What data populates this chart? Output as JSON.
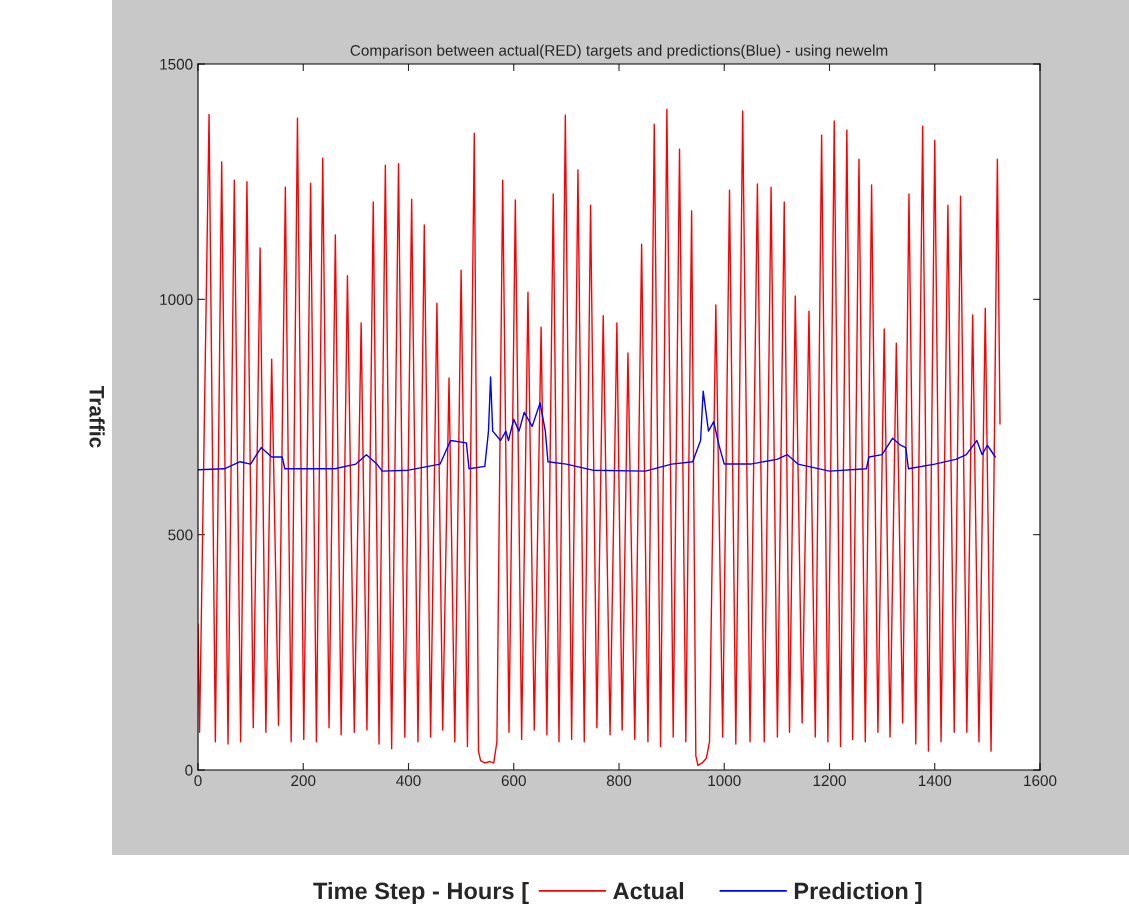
{
  "chart_data": {
    "type": "line",
    "title": "Comparison between actual(RED) targets and predictions(Blue) - using newelm",
    "xlabel": "Time Step - Hours [",
    "ylabel": "Traffic",
    "annotations": [
      "]"
    ],
    "xlim": [
      0,
      1600
    ],
    "xticks": [
      0,
      200,
      400,
      600,
      800,
      1000,
      1200,
      1400,
      1600
    ],
    "ylim": [
      0,
      1500
    ],
    "yticks": [
      0,
      500,
      1000,
      1500
    ],
    "grid": false,
    "legend": "bottom",
    "series": [
      {
        "name": "Actual",
        "color": "#ff0000",
        "x": [
          0,
          3,
          21,
          33,
          45,
          57,
          69,
          81,
          93,
          105,
          118,
          129,
          140,
          153,
          166,
          177,
          189,
          201,
          214,
          225,
          237,
          249,
          261,
          272,
          284,
          297,
          310,
          321,
          333,
          344,
          356,
          368,
          381,
          393,
          406,
          418,
          430,
          442,
          454,
          465,
          477,
          488,
          500,
          512,
          525,
          533,
          537,
          545,
          555,
          562,
          568,
          579,
          591,
          603,
          615,
          627,
          639,
          652,
          663,
          675,
          686,
          698,
          710,
          722,
          734,
          746,
          758,
          770,
          783,
          796,
          806,
          817,
          830,
          843,
          855,
          867,
          879,
          891,
          903,
          915,
          927,
          938,
          946,
          950,
          958,
          966,
          972,
          984,
          997,
          1010,
          1022,
          1035,
          1049,
          1063,
          1076,
          1089,
          1101,
          1114,
          1124,
          1135,
          1148,
          1161,
          1173,
          1185,
          1197,
          1209,
          1221,
          1233,
          1244,
          1256,
          1268,
          1280,
          1292,
          1304,
          1315,
          1327,
          1339,
          1351,
          1364,
          1377,
          1388,
          1400,
          1412,
          1425,
          1437,
          1449,
          1461,
          1472,
          1484,
          1496,
          1507,
          1519,
          1524
        ],
        "values": [
          310,
          80,
          1393,
          60,
          1292,
          55,
          1253,
          60,
          1250,
          90,
          1109,
          80,
          873,
          95,
          1238,
          60,
          1385,
          65,
          1247,
          60,
          1300,
          90,
          1137,
          75,
          1050,
          80,
          950,
          85,
          1207,
          55,
          1285,
          45,
          1288,
          70,
          1213,
          60,
          1158,
          70,
          992,
          85,
          833,
          60,
          1062,
          50,
          1353,
          40,
          20,
          15,
          18,
          15,
          60,
          1253,
          80,
          1211,
          65,
          1015,
          85,
          941,
          75,
          1224,
          60,
          1391,
          65,
          1275,
          60,
          1200,
          90,
          965,
          75,
          950,
          85,
          886,
          65,
          1117,
          60,
          1372,
          50,
          1404,
          70,
          1319,
          60,
          1188,
          30,
          10,
          15,
          25,
          60,
          988,
          70,
          1232,
          55,
          1400,
          60,
          1245,
          60,
          1238,
          70,
          1207,
          80,
          1007,
          100,
          975,
          70,
          1349,
          60,
          1379,
          50,
          1360,
          65,
          1298,
          60,
          1243,
          80,
          937,
          70,
          907,
          100,
          1224,
          55,
          1368,
          40,
          1338,
          60,
          1200,
          80,
          1219,
          80,
          967,
          60,
          981,
          40,
          1298,
          735
        ]
      },
      {
        "name": "Prediction",
        "color": "#0000ff",
        "x": [
          0,
          50,
          80,
          100,
          120,
          140,
          160,
          165,
          260,
          300,
          320,
          340,
          350,
          400,
          460,
          480,
          510,
          515,
          545,
          552,
          556,
          560,
          575,
          585,
          590,
          600,
          610,
          620,
          635,
          650,
          660,
          665,
          700,
          750,
          850,
          900,
          940,
          955,
          960,
          970,
          980,
          990,
          1000,
          1050,
          1100,
          1120,
          1140,
          1200,
          1270,
          1275,
          1300,
          1320,
          1335,
          1345,
          1350,
          1400,
          1440,
          1460,
          1480,
          1490,
          1500,
          1515
        ],
        "values": [
          638,
          640,
          655,
          650,
          685,
          665,
          665,
          640,
          640,
          650,
          670,
          650,
          635,
          637,
          650,
          700,
          695,
          640,
          645,
          720,
          835,
          720,
          700,
          720,
          700,
          745,
          720,
          760,
          730,
          780,
          720,
          655,
          650,
          637,
          635,
          650,
          655,
          700,
          805,
          720,
          740,
          690,
          650,
          650,
          660,
          670,
          650,
          635,
          640,
          665,
          670,
          705,
          690,
          685,
          640,
          650,
          660,
          670,
          700,
          670,
          690,
          665
        ]
      }
    ]
  }
}
